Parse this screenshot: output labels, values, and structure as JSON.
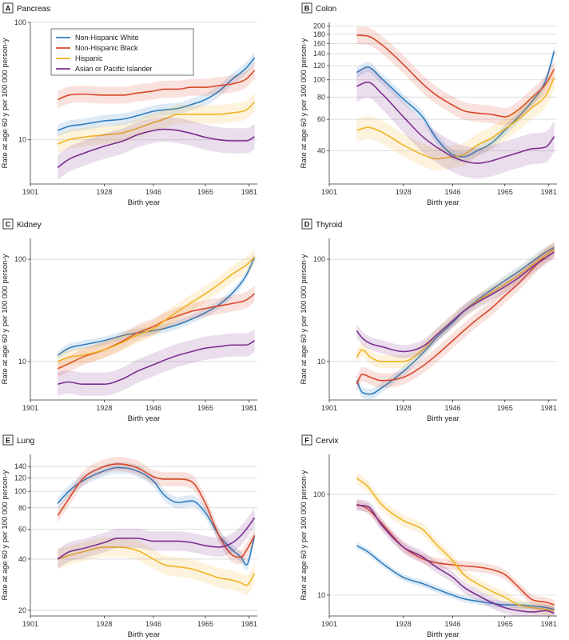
{
  "colors": {
    "Non-Hispanic White": "#2f7fc1",
    "Non-Hispanic Black": "#d9472b",
    "Hispanic": "#f0b323",
    "Asian or Pacific Islander": "#7b2f8f"
  },
  "legend": [
    "Non-Hispanic White",
    "Non-Hispanic Black",
    "Hispanic",
    "Asian or Pacific Islander"
  ],
  "chart_data": [
    {
      "panel": "A",
      "title": "Pancreas",
      "type": "line",
      "xlabel": "Birth year",
      "ylabel": "Rate at age 60 y per 100 000 person-y",
      "xlim": [
        1901,
        1984
      ],
      "xticks": [
        1901,
        1928,
        1946,
        1965,
        1981
      ],
      "yscale": "log",
      "ylim": [
        4.2,
        100
      ],
      "yticks": [
        10,
        100
      ],
      "legend_position": "top-left",
      "series": [
        {
          "name": "Non-Hispanic White",
          "x": [
            1911,
            1915,
            1920,
            1928,
            1935,
            1940,
            1946,
            1950,
            1955,
            1960,
            1965,
            1970,
            1975,
            1980,
            1983
          ],
          "y": [
            12,
            13,
            13.5,
            14.5,
            15,
            16,
            17.5,
            18,
            18.5,
            20,
            22,
            26,
            33,
            41,
            50
          ],
          "band": 0.12
        },
        {
          "name": "Non-Hispanic Black",
          "x": [
            1911,
            1915,
            1920,
            1928,
            1935,
            1940,
            1946,
            1950,
            1955,
            1960,
            1965,
            1970,
            1975,
            1980,
            1983
          ],
          "y": [
            22,
            24,
            24.5,
            24,
            24,
            25,
            26,
            27,
            27,
            28,
            28,
            29,
            30,
            33,
            39
          ],
          "band": 0.18
        },
        {
          "name": "Hispanic",
          "x": [
            1911,
            1915,
            1920,
            1928,
            1935,
            1940,
            1946,
            1950,
            1955,
            1960,
            1965,
            1970,
            1975,
            1980,
            1983
          ],
          "y": [
            9.2,
            10,
            10.5,
            11,
            11.5,
            12.5,
            14,
            15,
            16.5,
            16.5,
            16.5,
            16.5,
            17,
            18,
            21
          ],
          "band": 0.2
        },
        {
          "name": "Asian or Pacific Islander",
          "x": [
            1911,
            1915,
            1920,
            1928,
            1935,
            1940,
            1946,
            1950,
            1955,
            1960,
            1965,
            1970,
            1975,
            1980,
            1983
          ],
          "y": [
            5.8,
            6.8,
            7.6,
            8.8,
            9.8,
            11,
            12,
            12.3,
            12,
            11.3,
            10.5,
            10,
            9.8,
            9.8,
            10.6
          ],
          "band": 0.28
        }
      ]
    },
    {
      "panel": "B",
      "title": "Colon",
      "type": "line",
      "xlabel": "Birth year",
      "ylabel": "Rate at age 60 y per 100 000 person-y",
      "xlim": [
        1901,
        1984
      ],
      "xticks": [
        1901,
        1928,
        1946,
        1965,
        1981
      ],
      "yscale": "log",
      "ylim": [
        26,
        210
      ],
      "yticks": [
        40,
        60,
        80,
        100,
        120,
        140,
        160,
        180,
        200
      ],
      "series": [
        {
          "name": "Non-Hispanic White",
          "x": [
            1911,
            1915,
            1920,
            1928,
            1935,
            1940,
            1946,
            1950,
            1955,
            1960,
            1965,
            1970,
            1975,
            1980,
            1983
          ],
          "y": [
            110,
            118,
            102,
            78,
            62,
            47,
            38,
            37,
            40,
            44,
            52,
            62,
            76,
            100,
            145
          ],
          "band": 0.07
        },
        {
          "name": "Non-Hispanic Black",
          "x": [
            1911,
            1915,
            1920,
            1928,
            1935,
            1940,
            1946,
            1950,
            1955,
            1960,
            1965,
            1970,
            1975,
            1980,
            1983
          ],
          "y": [
            178,
            176,
            158,
            122,
            95,
            82,
            72,
            67,
            65,
            64,
            62,
            68,
            80,
            95,
            115
          ],
          "band": 0.12
        },
        {
          "name": "Hispanic",
          "x": [
            1911,
            1915,
            1920,
            1928,
            1935,
            1940,
            1946,
            1950,
            1955,
            1960,
            1965,
            1970,
            1975,
            1980,
            1983
          ],
          "y": [
            52,
            54,
            51,
            43,
            38,
            36,
            37,
            38,
            43,
            47,
            53,
            60,
            70,
            82,
            103
          ],
          "band": 0.16
        },
        {
          "name": "Asian or Pacific Islander",
          "x": [
            1911,
            1915,
            1920,
            1928,
            1935,
            1940,
            1946,
            1950,
            1955,
            1960,
            1965,
            1970,
            1975,
            1980,
            1983
          ],
          "y": [
            92,
            97,
            84,
            62,
            48,
            42,
            37,
            35,
            34,
            35,
            37,
            39,
            41,
            42,
            48
          ],
          "band": 0.22
        }
      ]
    },
    {
      "panel": "C",
      "title": "Kidney",
      "type": "line",
      "xlabel": "Birth year",
      "ylabel": "Rate at age 60 y per 100 000 person-y",
      "xlim": [
        1901,
        1984
      ],
      "xticks": [
        1901,
        1928,
        1946,
        1965,
        1981
      ],
      "yscale": "log",
      "ylim": [
        4.2,
        160
      ],
      "yticks": [
        10,
        100
      ],
      "series": [
        {
          "name": "Non-Hispanic White",
          "x": [
            1911,
            1915,
            1920,
            1928,
            1935,
            1940,
            1946,
            1950,
            1955,
            1960,
            1965,
            1970,
            1975,
            1980,
            1983
          ],
          "y": [
            11.5,
            13.5,
            14.5,
            16,
            18,
            19,
            20,
            21,
            23,
            26,
            30,
            36,
            47,
            70,
            105
          ],
          "band": 0.1
        },
        {
          "name": "Non-Hispanic Black",
          "x": [
            1911,
            1915,
            1920,
            1928,
            1935,
            1940,
            1946,
            1950,
            1955,
            1960,
            1965,
            1970,
            1975,
            1980,
            1983
          ],
          "y": [
            8.5,
            9.5,
            11,
            13,
            16,
            19,
            22,
            25,
            28,
            31,
            33,
            35,
            37,
            40,
            46
          ],
          "band": 0.2
        },
        {
          "name": "Hispanic",
          "x": [
            1911,
            1915,
            1920,
            1928,
            1935,
            1940,
            1946,
            1950,
            1955,
            1960,
            1965,
            1970,
            1975,
            1980,
            1983
          ],
          "y": [
            10,
            11,
            11.5,
            13,
            15.5,
            18,
            21,
            25,
            31,
            38,
            46,
            57,
            72,
            88,
            105
          ],
          "band": 0.2
        },
        {
          "name": "Asian or Pacific Islander",
          "x": [
            1911,
            1915,
            1920,
            1928,
            1935,
            1940,
            1946,
            1950,
            1955,
            1960,
            1965,
            1970,
            1975,
            1980,
            1983
          ],
          "y": [
            6,
            6.3,
            6,
            6,
            6.8,
            8,
            9.3,
            10.3,
            11.5,
            12.5,
            13.5,
            14,
            14.5,
            14.5,
            16
          ],
          "band": 0.3
        }
      ]
    },
    {
      "panel": "D",
      "title": "Thyroid",
      "type": "line",
      "xlabel": "Birth year",
      "ylabel": "Rate at age 60 y per 100 000 person-y",
      "xlim": [
        1901,
        1984
      ],
      "xticks": [
        1901,
        1928,
        1946,
        1965,
        1981
      ],
      "yscale": "log",
      "ylim": [
        4.2,
        160
      ],
      "yticks": [
        10,
        100
      ],
      "series": [
        {
          "name": "Non-Hispanic White",
          "x": [
            1911,
            1913,
            1916,
            1920,
            1928,
            1935,
            1940,
            1946,
            1950,
            1955,
            1960,
            1965,
            1970,
            1975,
            1980,
            1983
          ],
          "y": [
            6.5,
            5,
            4.8,
            5.5,
            8,
            12,
            17,
            24,
            31,
            40,
            50,
            62,
            76,
            95,
            118,
            130
          ],
          "band": 0.12
        },
        {
          "name": "Non-Hispanic Black",
          "x": [
            1911,
            1913,
            1916,
            1920,
            1928,
            1935,
            1940,
            1946,
            1950,
            1955,
            1960,
            1965,
            1970,
            1975,
            1980,
            1983
          ],
          "y": [
            6,
            7.5,
            7,
            6.5,
            7,
            9,
            11.5,
            16,
            20,
            26,
            33,
            44,
            58,
            80,
            110,
            125
          ],
          "band": 0.18
        },
        {
          "name": "Hispanic",
          "x": [
            1911,
            1913,
            1916,
            1920,
            1928,
            1935,
            1940,
            1946,
            1950,
            1955,
            1960,
            1965,
            1970,
            1975,
            1980,
            1983
          ],
          "y": [
            11,
            13,
            11,
            10,
            10,
            13,
            18,
            25,
            31,
            39,
            47,
            57,
            70,
            88,
            110,
            125
          ],
          "band": 0.16
        },
        {
          "name": "Asian or Pacific Islander",
          "x": [
            1911,
            1913,
            1916,
            1920,
            1928,
            1935,
            1940,
            1946,
            1950,
            1955,
            1960,
            1965,
            1970,
            1975,
            1980,
            1983
          ],
          "y": [
            20,
            17,
            15,
            14,
            12.5,
            14,
            18,
            25,
            31,
            38,
            45,
            54,
            66,
            84,
            104,
            118
          ],
          "band": 0.16
        }
      ]
    },
    {
      "panel": "E",
      "title": "Lung",
      "type": "line",
      "xlabel": "Birth year",
      "ylabel": "Rate at age 60 y per 100 000 person-y",
      "xlim": [
        1901,
        1984
      ],
      "xticks": [
        1901,
        1928,
        1946,
        1965,
        1981
      ],
      "yscale": "log",
      "ylim": [
        18.5,
        165
      ],
      "yticks": [
        20,
        40,
        60,
        80,
        100,
        120,
        140
      ],
      "series": [
        {
          "name": "Non-Hispanic White",
          "x": [
            1911,
            1915,
            1920,
            1928,
            1933,
            1940,
            1946,
            1950,
            1955,
            1960,
            1965,
            1970,
            1975,
            1978,
            1980,
            1983
          ],
          "y": [
            85,
            100,
            115,
            132,
            138,
            132,
            115,
            95,
            86,
            88,
            75,
            55,
            45,
            41,
            37,
            55
          ],
          "band": 0.08
        },
        {
          "name": "Non-Hispanic Black",
          "x": [
            1911,
            1915,
            1920,
            1928,
            1933,
            1940,
            1946,
            1950,
            1955,
            1960,
            1965,
            1970,
            1975,
            1978,
            1980,
            1983
          ],
          "y": [
            72,
            90,
            118,
            140,
            145,
            138,
            122,
            118,
            118,
            114,
            85,
            55,
            42,
            41,
            45,
            55
          ],
          "band": 0.1
        },
        {
          "name": "Hispanic",
          "x": [
            1911,
            1915,
            1920,
            1928,
            1933,
            1940,
            1946,
            1950,
            1955,
            1960,
            1965,
            1970,
            1975,
            1978,
            1980,
            1983
          ],
          "y": [
            40,
            42,
            44,
            47,
            47,
            45,
            40,
            37,
            36,
            35,
            33,
            31,
            30,
            29,
            28,
            33
          ],
          "band": 0.14
        },
        {
          "name": "Asian or Pacific Islander",
          "x": [
            1911,
            1915,
            1920,
            1928,
            1933,
            1940,
            1946,
            1950,
            1955,
            1960,
            1965,
            1970,
            1975,
            1978,
            1980,
            1983
          ],
          "y": [
            40,
            44,
            46,
            50,
            53,
            53,
            51,
            51,
            51,
            50,
            48,
            47,
            50,
            55,
            60,
            70
          ],
          "band": 0.14
        }
      ]
    },
    {
      "panel": "F",
      "title": "Cervix",
      "type": "line",
      "xlabel": "Birth year",
      "ylabel": "Rate at age 60 y per 100 000 person-y",
      "xlim": [
        1901,
        1984
      ],
      "xticks": [
        1901,
        1928,
        1946,
        1965,
        1981
      ],
      "yscale": "log",
      "ylim": [
        6.2,
        250
      ],
      "yticks": [
        10,
        100
      ],
      "series": [
        {
          "name": "Non-Hispanic White",
          "x": [
            1911,
            1915,
            1920,
            1928,
            1935,
            1940,
            1946,
            1950,
            1955,
            1960,
            1965,
            1970,
            1975,
            1980,
            1983
          ],
          "y": [
            31,
            27,
            21,
            15,
            13,
            11.5,
            10,
            9.2,
            8.7,
            8.3,
            8,
            8,
            7.8,
            7.5,
            7.2
          ],
          "band": 0.08
        },
        {
          "name": "Non-Hispanic Black",
          "x": [
            1911,
            1915,
            1920,
            1928,
            1935,
            1940,
            1946,
            1950,
            1955,
            1960,
            1965,
            1970,
            1975,
            1980,
            1983
          ],
          "y": [
            80,
            72,
            52,
            30,
            23,
            21,
            20,
            19.5,
            19,
            18,
            16,
            12,
            9,
            8.5,
            8
          ],
          "band": 0.12
        },
        {
          "name": "Hispanic",
          "x": [
            1911,
            1915,
            1920,
            1928,
            1935,
            1940,
            1946,
            1950,
            1955,
            1960,
            1965,
            1970,
            1975,
            1980,
            1983
          ],
          "y": [
            145,
            120,
            80,
            55,
            45,
            32,
            22,
            16,
            13,
            11,
            9.5,
            8,
            7.5,
            7.2,
            7
          ],
          "band": 0.14
        },
        {
          "name": "Asian or Pacific Islander",
          "x": [
            1911,
            1915,
            1920,
            1928,
            1935,
            1940,
            1946,
            1950,
            1955,
            1960,
            1965,
            1970,
            1975,
            1980,
            1983
          ],
          "y": [
            78,
            76,
            50,
            30,
            24,
            19,
            15,
            12,
            10,
            8.5,
            7.5,
            7,
            6.8,
            7,
            6.6
          ],
          "band": 0.14
        }
      ]
    }
  ]
}
